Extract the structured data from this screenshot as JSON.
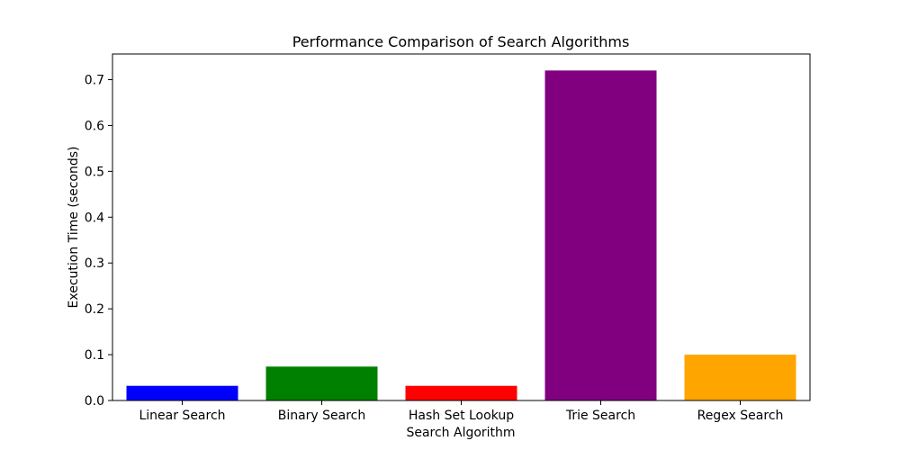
{
  "chart_data": {
    "type": "bar",
    "title": "Performance Comparison of Search Algorithms",
    "xlabel": "Search Algorithm",
    "ylabel": "Execution Time (seconds)",
    "categories": [
      "Linear Search",
      "Binary Search",
      "Hash Set Lookup",
      "Trie Search",
      "Regex Search"
    ],
    "values": [
      0.032,
      0.074,
      0.032,
      0.72,
      0.1
    ],
    "colors": [
      "#0000ff",
      "#008000",
      "#ff0000",
      "#800080",
      "#ffa500"
    ],
    "ylim": [
      0,
      0.756
    ],
    "yticks": [
      "0.0",
      "0.1",
      "0.2",
      "0.3",
      "0.4",
      "0.5",
      "0.6",
      "0.7"
    ],
    "grid": false,
    "legend": "none"
  }
}
